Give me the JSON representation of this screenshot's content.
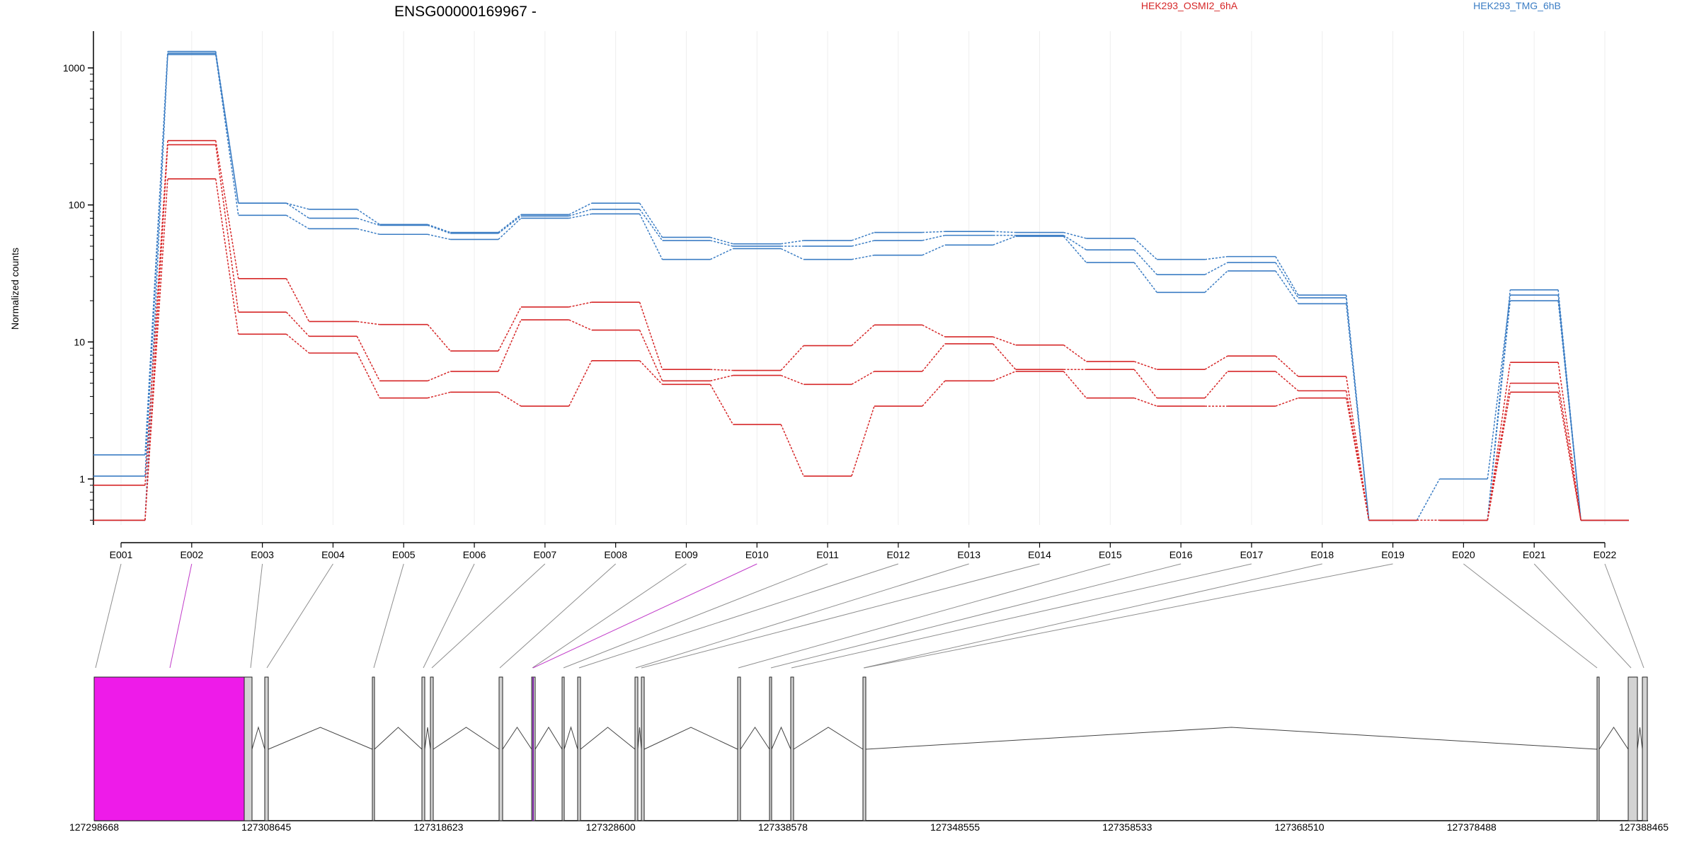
{
  "chart_data": {
    "type": "line",
    "title": "ENSG00000169967 -",
    "ylabel": "Normalized counts",
    "yscale": "log",
    "ylim": [
      0.5,
      1800
    ],
    "yticks": [
      "1",
      "10",
      "100",
      "1000"
    ],
    "ytick_values": [
      1,
      10,
      100,
      1000
    ],
    "categories": [
      "E001",
      "E002",
      "E003",
      "E004",
      "E005",
      "E006",
      "E007",
      "E008",
      "E009",
      "E010",
      "E011",
      "E012",
      "E013",
      "E014",
      "E015",
      "E016",
      "E017",
      "E018",
      "E019",
      "E020",
      "E021",
      "E022"
    ],
    "highlight_category": "E002",
    "legend": [
      {
        "name": "HEK293_OSMI2_6hA",
        "color": "#d62728"
      },
      {
        "name": "HEK293_TMG_6hB",
        "color": "#3b7dc4"
      }
    ],
    "series": [
      {
        "group": "HEK293_TMG_6hB",
        "color": "#3b7dc4",
        "values": [
          1.5,
          1320,
          103,
          93,
          72,
          63,
          85,
          103,
          58,
          52,
          55,
          63,
          64,
          63,
          57,
          40,
          42,
          22,
          0.5,
          0.5,
          24,
          0.5
        ]
      },
      {
        "group": "HEK293_TMG_6hB",
        "color": "#3b7dc4",
        "values": [
          1.05,
          1280,
          103,
          80,
          71,
          62,
          83,
          93,
          55,
          50,
          50,
          55,
          60,
          60,
          47,
          31,
          38,
          21,
          0.5,
          1,
          22,
          0.5
        ]
      },
      {
        "group": "HEK293_TMG_6hB",
        "color": "#3b7dc4",
        "values": [
          0.5,
          1250,
          84,
          67,
          61,
          56,
          80,
          86,
          40,
          48,
          40,
          43,
          51,
          59,
          38,
          23,
          33,
          19,
          0.5,
          0.5,
          20,
          0.5
        ]
      },
      {
        "group": "HEK293_OSMI2_6hA",
        "color": "#d62728",
        "values": [
          0.9,
          295,
          29,
          14.1,
          13.4,
          8.6,
          18,
          19.5,
          6.3,
          6.2,
          9.4,
          13.3,
          10.9,
          9.5,
          7.2,
          6.3,
          7.9,
          5.6,
          0.5,
          0.5,
          7.1,
          0.5
        ]
      },
      {
        "group": "HEK293_OSMI2_6hA",
        "color": "#d62728",
        "values": [
          0.5,
          275,
          16.5,
          11,
          5.2,
          6.1,
          14.5,
          12.2,
          5.2,
          5.7,
          4.9,
          6.1,
          9.7,
          6.3,
          6.3,
          3.9,
          6.1,
          4.4,
          0.5,
          0.5,
          5,
          0.5
        ]
      },
      {
        "group": "HEK293_OSMI2_6hA",
        "color": "#d62728",
        "values": [
          0.5,
          155,
          11.4,
          8.3,
          3.9,
          4.3,
          3.4,
          7.3,
          4.9,
          2.5,
          1.05,
          3.4,
          5.2,
          6.1,
          3.9,
          3.4,
          3.4,
          3.9,
          0.5,
          0.5,
          4.3,
          0.5
        ]
      }
    ],
    "gene_model": {
      "xticks": [
        "127298668",
        "127308645",
        "127318623",
        "127328600",
        "127338578",
        "127348555",
        "127358533",
        "127368510",
        "127378488",
        "127388465"
      ],
      "exon_fill": "#d3d3d3",
      "highlight_fill": "#ee1be9"
    }
  }
}
